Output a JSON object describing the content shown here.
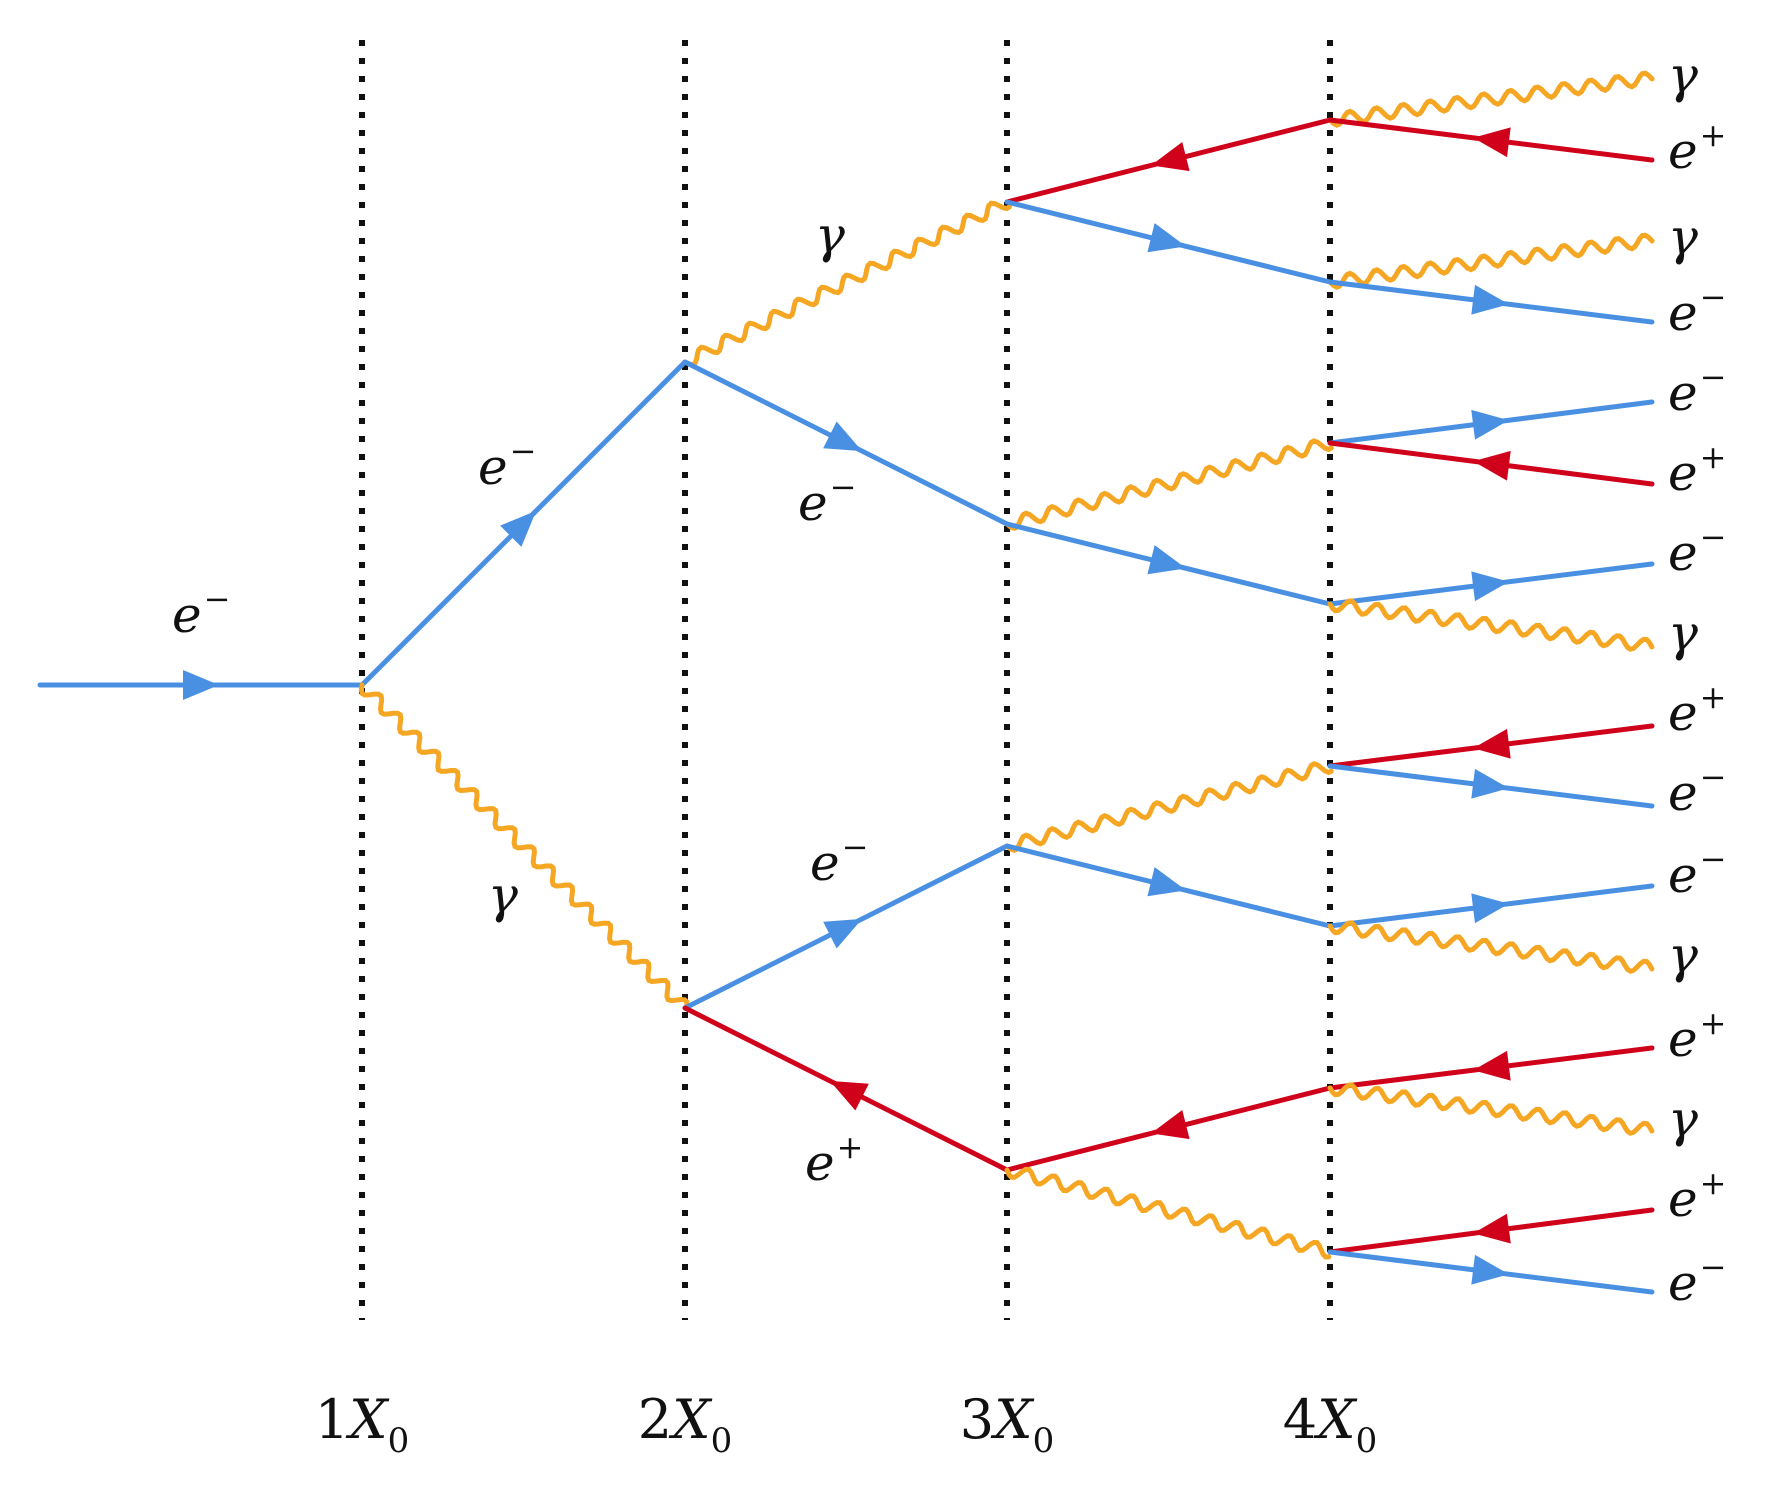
{
  "colors": {
    "electron": "#4a90e2",
    "positron": "#d0021b",
    "photon": "#f5a623",
    "guide": "#111111"
  },
  "labels": {
    "electron": "e",
    "electron_sup": "−",
    "positron": "e",
    "positron_sup": "+",
    "photon": "γ"
  },
  "axis": {
    "ticks": [
      {
        "num": "1",
        "sym": "X",
        "sub": "0"
      },
      {
        "num": "2",
        "sym": "X",
        "sub": "0"
      },
      {
        "num": "3",
        "sym": "X",
        "sub": "0"
      },
      {
        "num": "4",
        "sym": "X",
        "sub": "0"
      }
    ]
  },
  "particles": [
    {
      "id": "in-e-minus",
      "type": "electron",
      "stage": 0
    },
    {
      "id": "s1-e-minus",
      "type": "electron",
      "stage": 1
    },
    {
      "id": "s1-gamma",
      "type": "photon",
      "stage": 1
    },
    {
      "id": "s2-gamma-top",
      "type": "photon",
      "stage": 2
    },
    {
      "id": "s2-e-minus-top",
      "type": "electron",
      "stage": 2
    },
    {
      "id": "s2-e-minus-bottom",
      "type": "electron",
      "stage": 2
    },
    {
      "id": "s2-e-plus-bottom",
      "type": "positron",
      "stage": 2
    }
  ],
  "final_states": [
    "γ",
    "e+",
    "γ",
    "e−",
    "e−",
    "e+",
    "e−",
    "γ",
    "e+",
    "e−",
    "e−",
    "γ",
    "e+",
    "γ",
    "e+",
    "e−"
  ]
}
